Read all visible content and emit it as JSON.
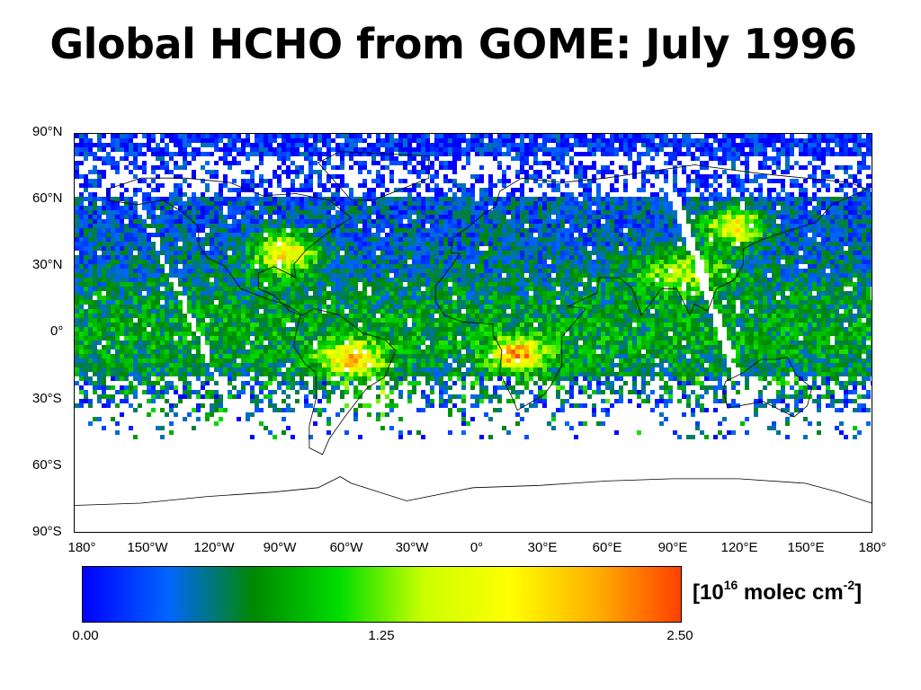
{
  "title": "Global HCHO from GOME: July 1996",
  "map": {
    "lat_labels": [
      "90°N",
      "60°N",
      "30°N",
      "0°",
      "30°S",
      "60°S",
      "90°S"
    ],
    "lon_labels": [
      "180°",
      "150°W",
      "120°W",
      "90°W",
      "60°W",
      "30°W",
      "0°",
      "30°E",
      "60°E",
      "90°E",
      "120°E",
      "150°E",
      "180°"
    ],
    "no_data_color": "#ffffff",
    "hotspots": [
      "southeastern United States",
      "central Africa",
      "southern Africa",
      "South America",
      "eastern China"
    ]
  },
  "colorbar": {
    "min_label": "0.00",
    "mid_label": "1.25",
    "max_label": "2.50",
    "min_value": 0.0,
    "max_value": 2.5,
    "colors": [
      "#0000ff",
      "#0066ff",
      "#008800",
      "#00dd00",
      "#ccff00",
      "#ffff00",
      "#ffb000",
      "#ff4000"
    ],
    "units_text": "[10",
    "units_exp1": "16",
    "units_mid": " molec cm",
    "units_exp2": "-2",
    "units_end": "]"
  }
}
